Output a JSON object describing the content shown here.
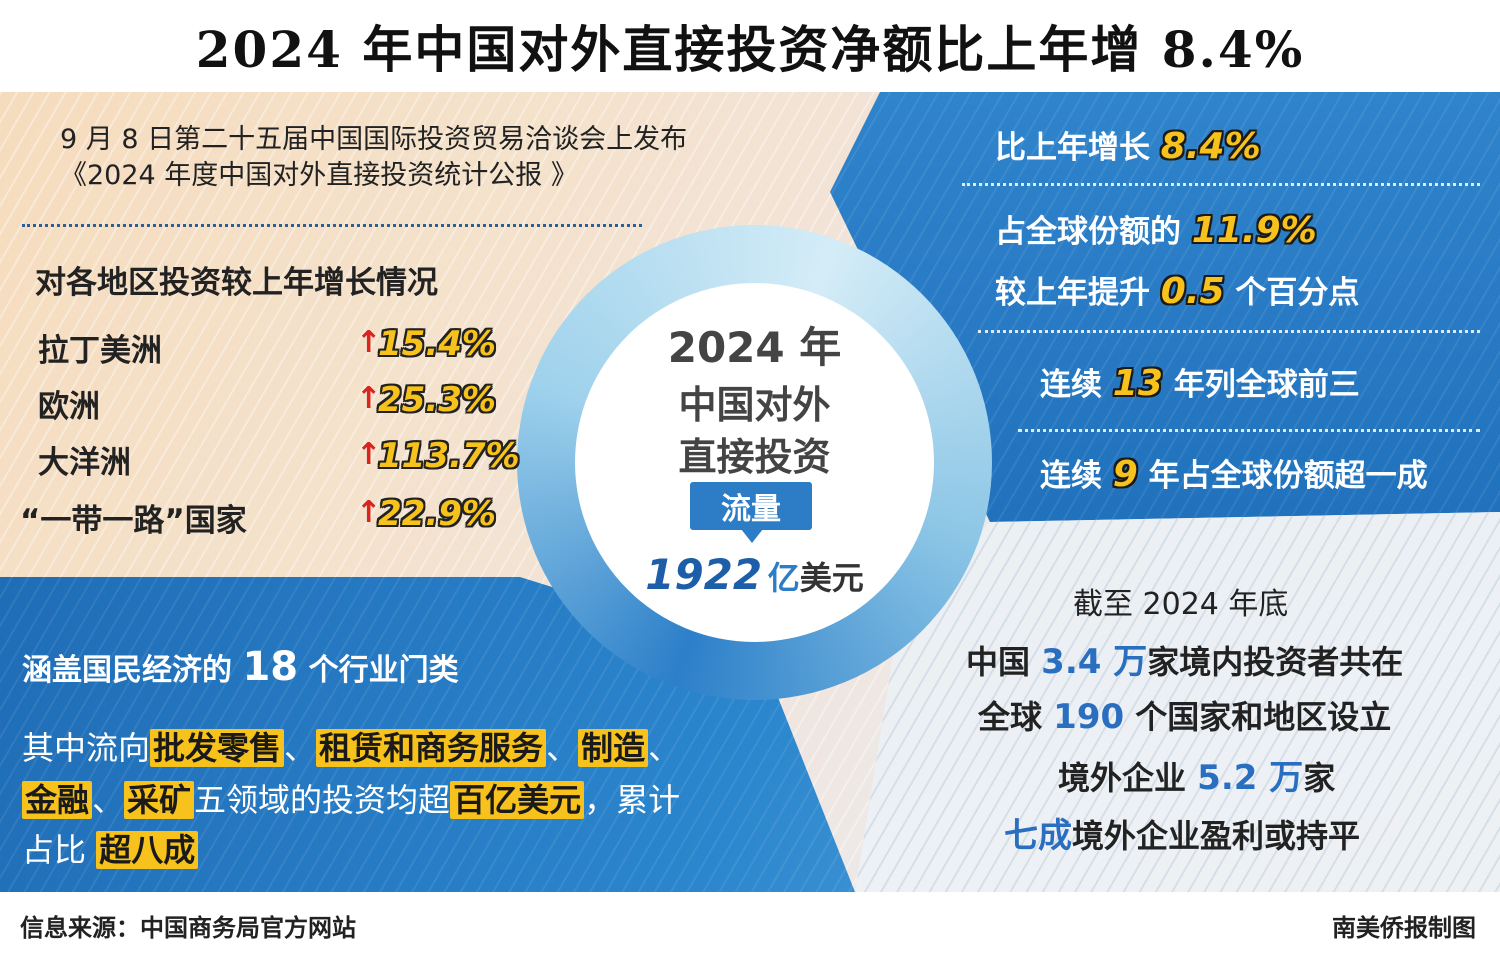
{
  "title": "2024 年中国对外直接投资净额比上年增 8.4%",
  "intro": {
    "line1": "9 月 8 日第二十五届中国国际投资贸易洽谈会上发布",
    "line2": "《2024 年度中国对外直接投资统计公报 》"
  },
  "regions": {
    "heading": "对各地区投资较上年增长情况",
    "items": [
      {
        "name": "拉丁美洲",
        "growth": "15.4%"
      },
      {
        "name": "欧洲",
        "growth": "25.3%"
      },
      {
        "name": "大洋洲",
        "growth": "113.7%"
      },
      {
        "name": "“一带一路”国家",
        "growth": "22.9%"
      }
    ]
  },
  "center": {
    "year": "2024 年",
    "line2": "中国对外",
    "line3": "直接投资",
    "flow_label": "流量",
    "amount": "1922",
    "unit_yi": "亿",
    "unit_usd": "美元"
  },
  "right_top": {
    "growth_label": "比上年增长",
    "growth_value": "8.4%",
    "share_label": "占全球份额的",
    "share_value": "11.9%",
    "rise_prefix": "较上年提升",
    "rise_value": "0.5",
    "rise_suffix": "个百分点",
    "top3_prefix": "连续",
    "top3_value": "13",
    "top3_suffix": "年列全球前三",
    "tenth_prefix": "连续",
    "tenth_value": "9",
    "tenth_suffix": "年占全球份额超一成"
  },
  "right_bottom": {
    "heading": "截至 2024 年底",
    "l1_prefix": "中国",
    "l1_value": "3.4 万",
    "l1_suffix": "家境内投资者共在",
    "l2_prefix": "全球",
    "l2_value": "190",
    "l2_suffix": "个国家和地区设立",
    "l3_prefix": "境外企业",
    "l3_value": "5.2 万",
    "l3_suffix": "家",
    "l4_value": "七成",
    "l4_suffix": "境外企业盈利或持平"
  },
  "left_bottom": {
    "heading_prefix": "涵盖国民经济的",
    "heading_value": "18",
    "heading_suffix": "个行业门类",
    "p_prefix": "其中流向",
    "t1": "批发零售",
    "sep1": "、",
    "t2": "租赁和商务服务",
    "sep2": "、",
    "t3": "制造",
    "sep3": "、",
    "t4": "金融",
    "sep4": "、",
    "t5": "采矿",
    "mid": "五领域的投资均超",
    "t6": "百亿美元",
    "tail": "，累计",
    "p3_prefix": "占比",
    "t7": "超八成"
  },
  "footer": {
    "source": "信息来源：中国商务局官方网站",
    "credit": "南美侨报制图"
  },
  "colors": {
    "accent_blue": "#2d7cc6",
    "highlight_yellow": "#f7c21b",
    "arrow_red": "#d8251f"
  }
}
